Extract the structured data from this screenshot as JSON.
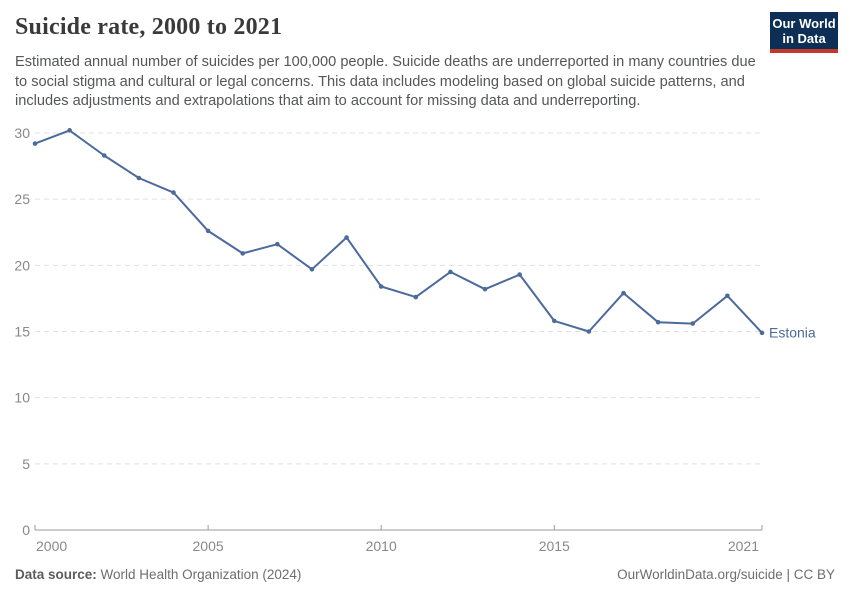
{
  "header": {
    "title": "Suicide rate, 2000 to 2021",
    "subtitle": "Estimated annual number of suicides per 100,000 people. Suicide deaths are underreported in many countries due to social stigma and cultural or legal concerns. This data includes modeling based on global suicide patterns, and includes adjustments and extrapolations that aim to account for missing data and underreporting.",
    "logo": {
      "line1": "Our World",
      "line2": "in Data",
      "bg_color": "#0e2f55",
      "stripe_color": "#c0392b"
    }
  },
  "chart_data": {
    "type": "line",
    "title": "Suicide rate, 2000 to 2021",
    "xlabel": "",
    "ylabel": "",
    "xlim": [
      2000,
      2021
    ],
    "ylim": [
      0,
      30
    ],
    "x_ticks": [
      2000,
      2005,
      2010,
      2015,
      2021
    ],
    "y_ticks": [
      0,
      5,
      10,
      15,
      20,
      25,
      30
    ],
    "grid": "horizontal-dashed",
    "x": [
      2000,
      2001,
      2002,
      2003,
      2004,
      2005,
      2006,
      2007,
      2008,
      2009,
      2010,
      2011,
      2012,
      2013,
      2014,
      2015,
      2016,
      2017,
      2018,
      2019,
      2020,
      2021
    ],
    "series": [
      {
        "name": "Estonia",
        "color": "#4c6a9c",
        "values": [
          29.2,
          30.2,
          28.3,
          26.6,
          25.5,
          22.6,
          20.9,
          21.6,
          19.7,
          22.1,
          18.4,
          17.6,
          19.5,
          18.2,
          19.3,
          15.8,
          15.0,
          17.9,
          15.7,
          15.6,
          17.7,
          14.9
        ]
      }
    ],
    "colors": {
      "gridline": "#e0e0e0",
      "axis": "#9b9b9b",
      "tick_label": "#888888"
    }
  },
  "footer": {
    "datasource_label": "Data source:",
    "datasource_value": "World Health Organization (2024)",
    "credit": "OurWorldinData.org/suicide | CC BY"
  }
}
